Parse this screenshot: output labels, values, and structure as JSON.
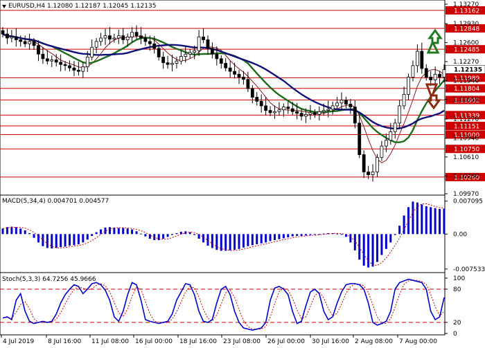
{
  "chart_data": [
    {
      "type": "candlestick",
      "panel": "price",
      "symbol": "EURUSD",
      "timeframe": "H4",
      "ohlc_header": [
        "1.12080",
        "1.12187",
        "1.12045",
        "1.12135"
      ],
      "ylim": [
        1.0997,
        1.1327
      ],
      "y_tick_labels": [
        "1.13270",
        "1.12930",
        "1.12600",
        "1.12270",
        "1.11940",
        "1.11610",
        "1.11270",
        "1.10940",
        "1.10610",
        "1.10280",
        "1.09970"
      ],
      "levels": [
        1.13162,
        1.12848,
        1.12485,
        1.11989,
        1.11804,
        1.11602,
        1.11339,
        1.11151,
        1.11,
        1.1075,
        1.1026
      ],
      "level_labels": [
        "1.13162",
        "1.12848",
        "1.12485",
        "1.11989",
        "1.11804",
        "1.11602",
        "1.11339",
        "1.11151",
        "1.11000",
        "1.10750",
        "1.10260"
      ],
      "current_price": 1.12135,
      "current_price_label": "1.12135",
      "close": [
        1.1275,
        1.1268,
        1.127,
        1.1265,
        1.1262,
        1.1258,
        1.1262,
        1.1255,
        1.124,
        1.1232,
        1.1228,
        1.123,
        1.1226,
        1.1222,
        1.122,
        1.1216,
        1.1212,
        1.121,
        1.1218,
        1.1235,
        1.1252,
        1.1262,
        1.1268,
        1.1272,
        1.1266,
        1.1268,
        1.1272,
        1.1265,
        1.127,
        1.1278,
        1.1272,
        1.1268,
        1.1262,
        1.1258,
        1.125,
        1.1235,
        1.1225,
        1.1222,
        1.1224,
        1.1228,
        1.1236,
        1.124,
        1.1243,
        1.1246,
        1.127,
        1.1265,
        1.125,
        1.124,
        1.1232,
        1.1224,
        1.1216,
        1.121,
        1.1205,
        1.12,
        1.1196,
        1.118,
        1.1165,
        1.1158,
        1.115,
        1.1142,
        1.1138,
        1.114,
        1.1143,
        1.1148,
        1.1145,
        1.114,
        1.1137,
        1.1132,
        1.1135,
        1.1138,
        1.1135,
        1.114,
        1.1142,
        1.1144,
        1.115,
        1.1155,
        1.116,
        1.1153,
        1.1148,
        1.112,
        1.1065,
        1.1035,
        1.103,
        1.1035,
        1.106,
        1.108,
        1.109,
        1.1105,
        1.112,
        1.115,
        1.117,
        1.12,
        1.122,
        1.1245,
        1.1215,
        1.12,
        1.1195,
        1.1205,
        1.12,
        1.1213
      ],
      "indicators": [
        {
          "name": "MA_fast",
          "color": "#8b1a1a"
        },
        {
          "name": "MA_mid",
          "color": "#1a6b1a"
        },
        {
          "name": "MA_slow",
          "color": "#10107a"
        }
      ],
      "arrows": [
        {
          "direction": "up",
          "color": "#1f7a1f"
        },
        {
          "direction": "down",
          "color": "#8b2a10"
        }
      ]
    },
    {
      "type": "bar",
      "panel": "macd",
      "label": "MACD(5,34,4) 0.004701 0.004577",
      "ylim": [
        -0.008,
        0.0078
      ],
      "y_tick_labels": [
        "0.007095",
        "0.00",
        "-0.007533"
      ],
      "values": [
        0.0012,
        0.0015,
        0.0016,
        0.0015,
        0.0012,
        0.0008,
        0.0002,
        -0.0008,
        -0.0018,
        -0.0026,
        -0.003,
        -0.0031,
        -0.003,
        -0.0028,
        -0.0027,
        -0.0025,
        -0.0024,
        -0.0022,
        -0.0018,
        -0.0012,
        -0.0004,
        0.0004,
        0.001,
        0.0014,
        0.0015,
        0.0014,
        0.0013,
        0.0013,
        0.0012,
        0.001,
        0.0006,
        0.0001,
        -0.0005,
        -0.001,
        -0.0013,
        -0.0013,
        -0.001,
        -0.0006,
        -0.0002,
        0.0002,
        0.0005,
        0.0006,
        0.0004,
        -0.0002,
        -0.001,
        -0.0018,
        -0.0025,
        -0.003,
        -0.0034,
        -0.0036,
        -0.0036,
        -0.0035,
        -0.0034,
        -0.0032,
        -0.0029,
        -0.0026,
        -0.0024,
        -0.0022,
        -0.002,
        -0.0018,
        -0.0015,
        -0.0013,
        -0.0011,
        -0.0009,
        -0.0007,
        -0.0005,
        -0.0004,
        -0.0004,
        -0.0003,
        -0.0002,
        -0.0001,
        0.0,
        0.0001,
        0.0002,
        0.0002,
        0.0001,
        -0.0001,
        -0.0006,
        -0.0018,
        -0.0035,
        -0.0055,
        -0.0068,
        -0.0072,
        -0.007,
        -0.006,
        -0.0045,
        -0.0032,
        -0.0018,
        -0.0002,
        0.0018,
        0.004,
        0.0058,
        0.007,
        0.0068,
        0.0064,
        0.006,
        0.0058,
        0.0056,
        0.0054,
        0.0055
      ],
      "signal_color": "#cc0000",
      "bar_color": "#0000c8"
    },
    {
      "type": "line",
      "panel": "stochastic",
      "label": "Stoch(5,3,3) 64.7256 45.9666",
      "ylim": [
        0,
        100
      ],
      "y_tick_labels": [
        "100",
        "80",
        "20",
        "0"
      ],
      "levels": [
        80,
        20
      ],
      "values": [
        28,
        30,
        25,
        60,
        72,
        40,
        22,
        18,
        20,
        22,
        20,
        22,
        35,
        55,
        70,
        80,
        88,
        85,
        72,
        80,
        90,
        92,
        88,
        78,
        60,
        30,
        22,
        40,
        70,
        92,
        88,
        60,
        25,
        22,
        20,
        18,
        20,
        22,
        35,
        60,
        75,
        90,
        88,
        70,
        40,
        22,
        20,
        25,
        55,
        80,
        85,
        70,
        40,
        20,
        10,
        8,
        6,
        8,
        10,
        20,
        60,
        82,
        85,
        80,
        70,
        40,
        18,
        22,
        50,
        75,
        80,
        72,
        40,
        25,
        30,
        55,
        75,
        88,
        90,
        90,
        88,
        80,
        55,
        20,
        15,
        18,
        22,
        40,
        80,
        92,
        95,
        98,
        96,
        94,
        92,
        80,
        40,
        25,
        30,
        65
      ],
      "signal_color": "#cc0000",
      "line_color": "#0000c8"
    }
  ],
  "x_tick_labels": [
    "4 Jul 2019",
    "8 Jul 16:00",
    "11 Jul 08:00",
    "16 Jul 00:00",
    "18 Jul 16:00",
    "23 Jul 08:00",
    "26 Jul 00:00",
    "30 Jul 16:00",
    "2 Aug 08:00",
    "7 Aug 00:00"
  ],
  "colors": {
    "level_line": "#cc0000",
    "axis_label_bg": "#cc0000",
    "current_label_bg": "#ffffff",
    "panel_border": "#000000"
  }
}
